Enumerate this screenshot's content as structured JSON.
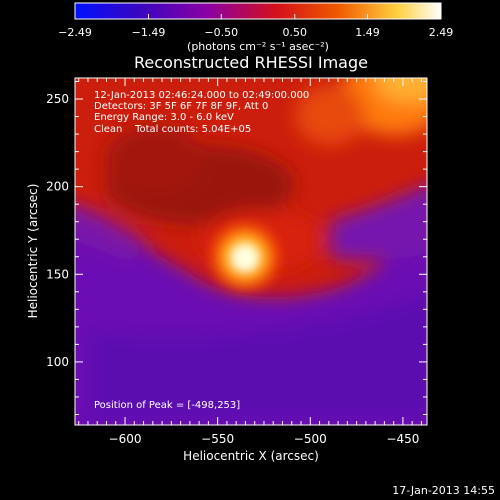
{
  "chart_data": {
    "type": "heatmap",
    "title": "Reconstructed RHESSI Image",
    "xlabel": "Heliocentric X (arcsec)",
    "ylabel": "Heliocentric Y (arcsec)",
    "xlim": [
      -627,
      -437
    ],
    "ylim": [
      64,
      262
    ],
    "x_ticks": [
      -600,
      -550,
      -500,
      -450
    ],
    "x_tick_labels": [
      "-600",
      "-550",
      "-500",
      "-450"
    ],
    "y_ticks": [
      100,
      150,
      200,
      250
    ],
    "y_tick_labels": [
      "100",
      "150",
      "200",
      "250"
    ],
    "colorbar": {
      "ticks": [
        -2.49,
        -1.49,
        -0.5,
        0.5,
        1.49,
        2.49
      ],
      "tick_labels": [
        "-2.49",
        "-1.49",
        "-0.50",
        "0.50",
        "1.49",
        "2.49"
      ],
      "range": [
        -2.49,
        2.49
      ],
      "unit_label": "(photons cm⁻² s⁻¹ asec⁻²)",
      "colors": [
        "#0010ff",
        "#3a06c0",
        "#8a00a6",
        "#d4101a",
        "#f05a00",
        "#ffd040",
        "#ffffff"
      ]
    },
    "peak": {
      "x": -498,
      "y": 253
    },
    "bright_source": {
      "x": -533,
      "y": 156,
      "value": 2.4
    },
    "info_lines": [
      "12-Jan-2013 02:46:24.000 to 02:49:00.000",
      "Detectors: 3F 5F 6F 7F 8F 9F, Att 0",
      "Energy Range: 3.0 - 6.0 keV",
      "Clean    Total counts: 5.04E+05"
    ],
    "peak_text": "Position of Peak = [-498,253]"
  },
  "footer": {
    "timestamp": "17-Jan-2013 14:55"
  }
}
